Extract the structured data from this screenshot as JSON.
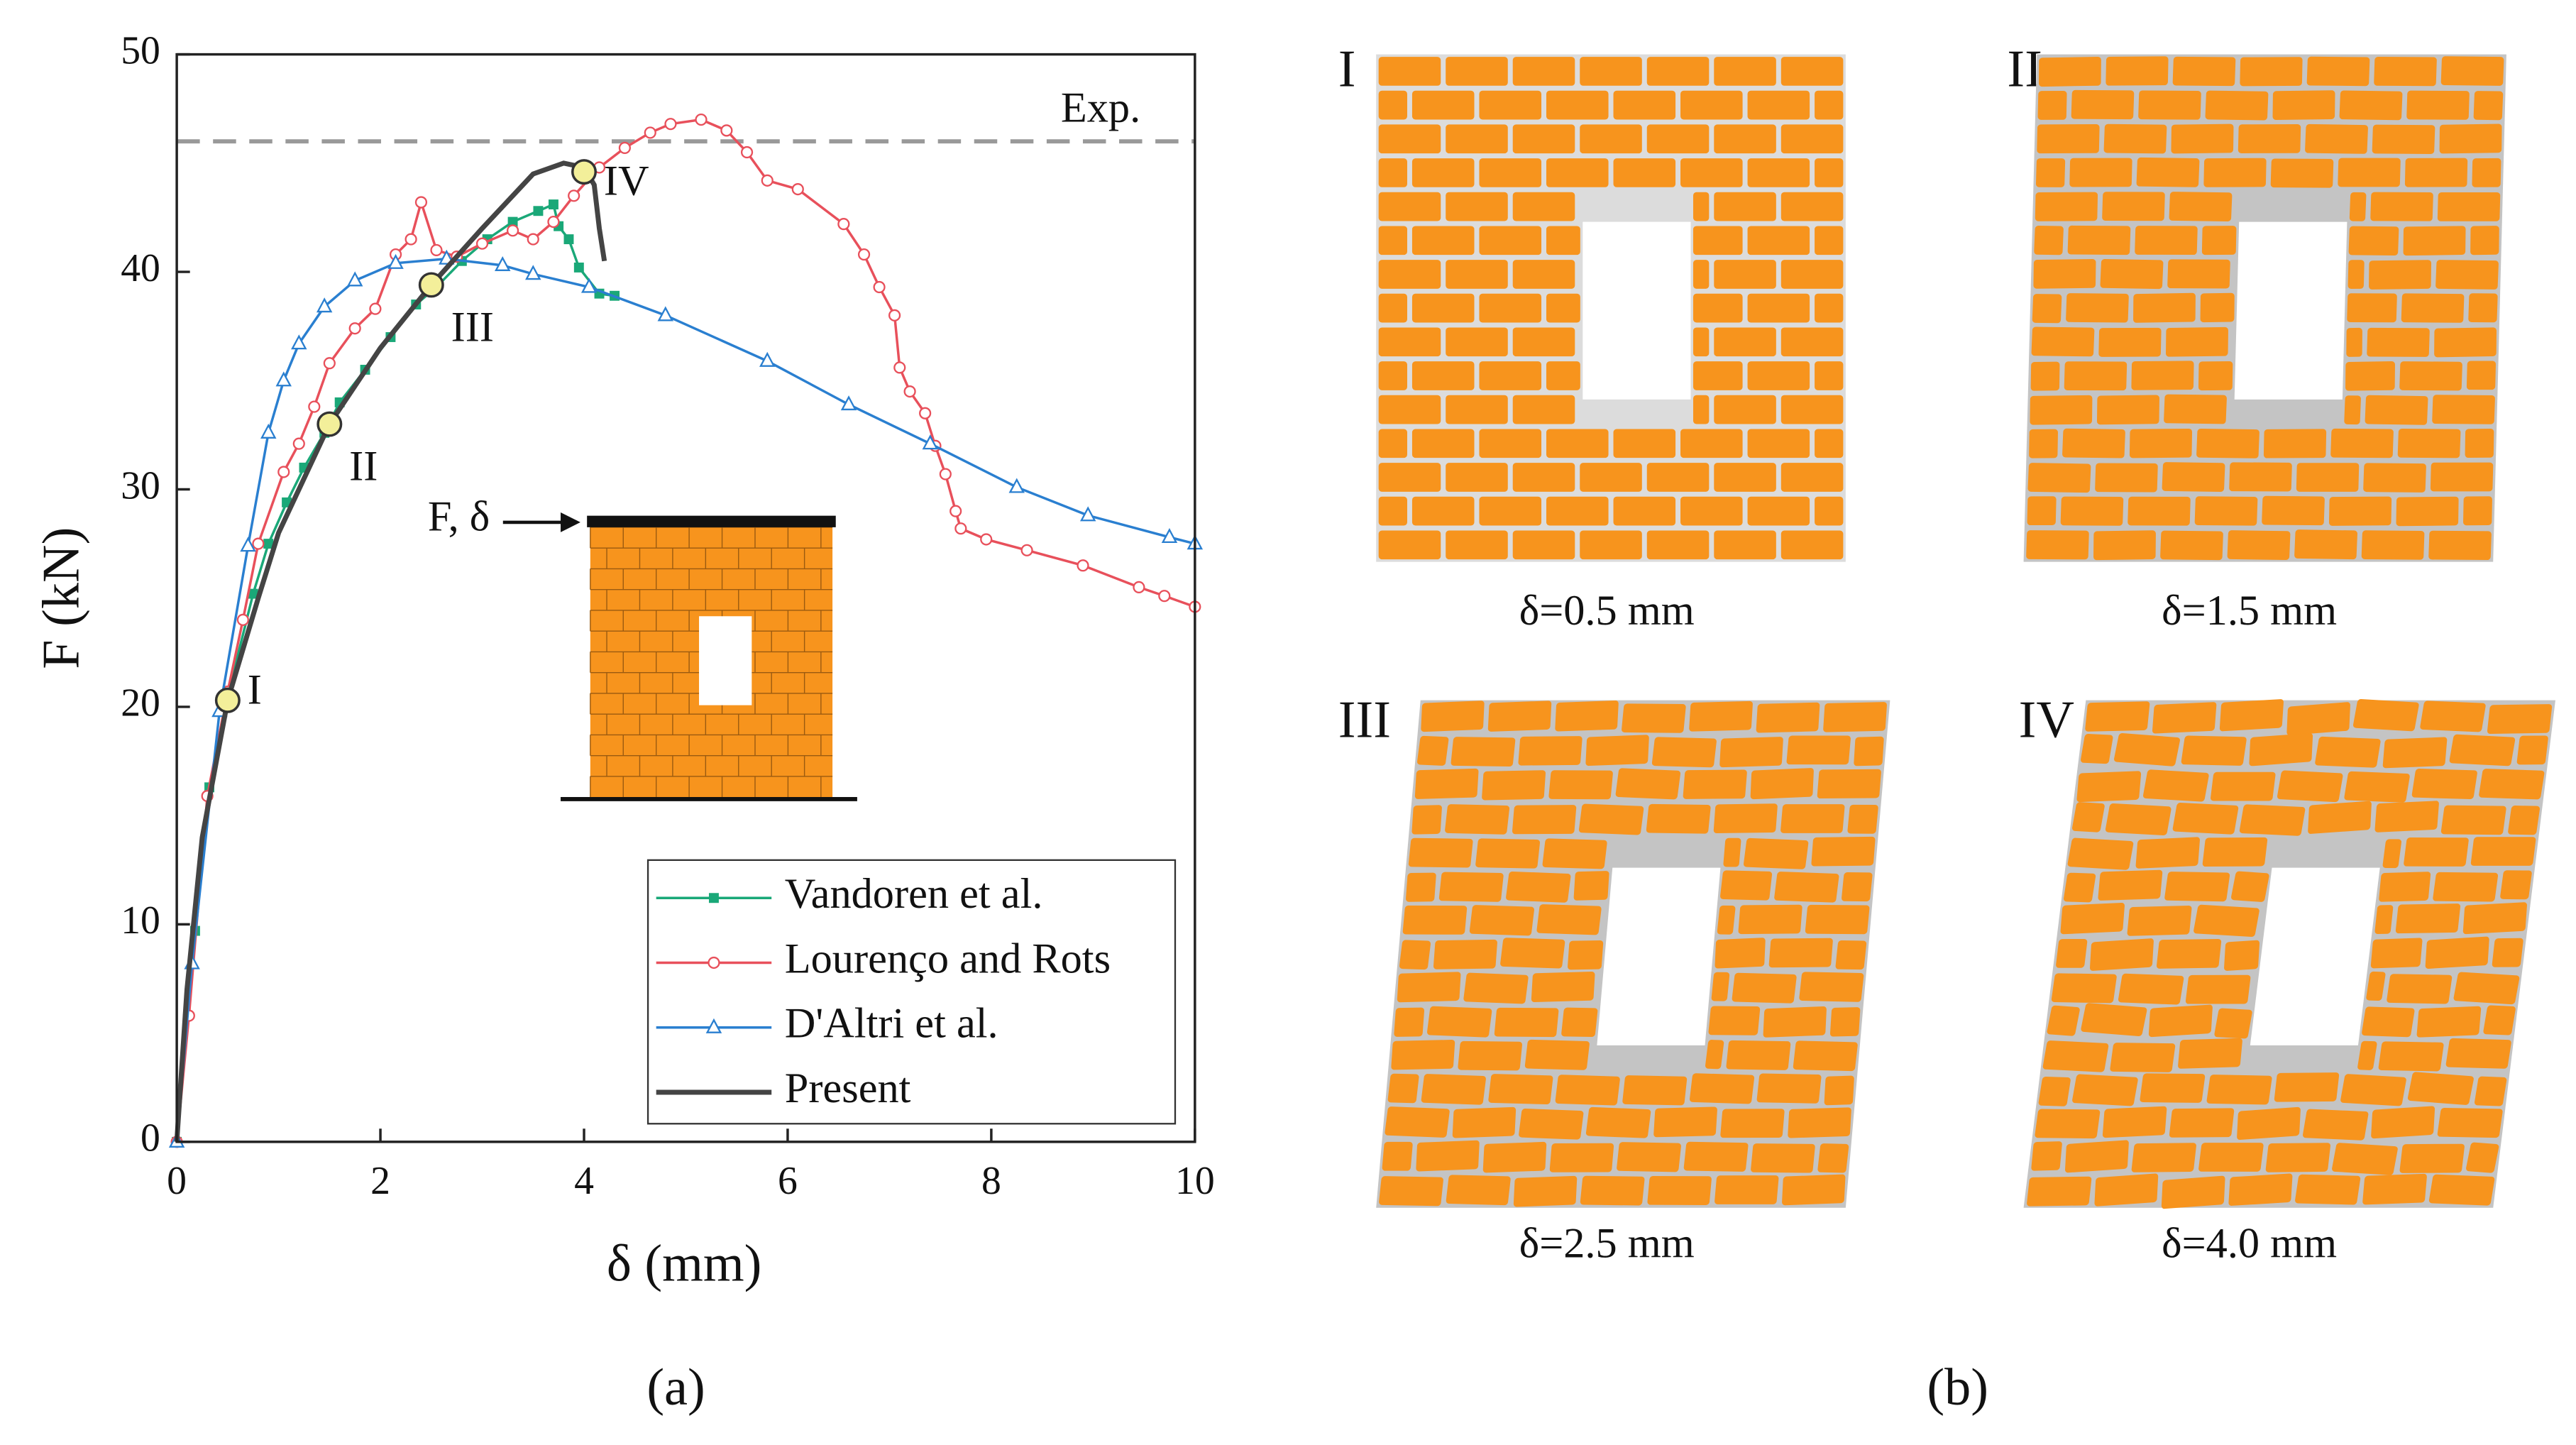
{
  "chart_data": {
    "type": "line",
    "xlabel": "δ (mm)",
    "ylabel": "F (kN)",
    "panel_label": "(a)",
    "xlim": [
      0,
      10
    ],
    "ylim": [
      0,
      50
    ],
    "xticks": [
      0,
      2,
      4,
      6,
      8,
      10
    ],
    "yticks": [
      0,
      10,
      20,
      30,
      40,
      50
    ],
    "legend": "lower right",
    "reference_line": {
      "label": "Exp.",
      "value": 46,
      "color": "#999999"
    },
    "inset_label": "F, δ",
    "annotations": [
      {
        "text": "I",
        "x": 0.5,
        "y": 20.3
      },
      {
        "text": "II",
        "x": 1.5,
        "y": 33
      },
      {
        "text": "III",
        "x": 2.5,
        "y": 39.4
      },
      {
        "text": "IV",
        "x": 4,
        "y": 44.6
      }
    ],
    "series": [
      {
        "name": "Vandoren et al.",
        "color": "#1aa878",
        "marker": "square",
        "x": [
          0,
          0.18,
          0.32,
          0.5,
          0.75,
          0.9,
          1.08,
          1.25,
          1.45,
          1.6,
          1.85,
          2.1,
          2.35,
          2.55,
          2.8,
          3.05,
          3.3,
          3.55,
          3.7,
          3.75,
          3.85,
          3.95,
          4.15,
          4.3
        ],
        "values": [
          0,
          9.7,
          16.3,
          20.5,
          25.2,
          27.5,
          29.4,
          31,
          32.6,
          34,
          35.5,
          37,
          38.5,
          39.3,
          40.5,
          41.5,
          42.3,
          42.8,
          43.1,
          42.1,
          41.5,
          40.2,
          39,
          38.9
        ]
      },
      {
        "name": "Lourenço and Rots",
        "color": "#e8505b",
        "marker": "circle",
        "x": [
          0,
          0.12,
          0.3,
          0.5,
          0.65,
          0.8,
          1.05,
          1.2,
          1.35,
          1.5,
          1.75,
          1.95,
          2.15,
          2.3,
          2.4,
          2.55,
          2.75,
          3.0,
          3.3,
          3.5,
          3.7,
          3.9,
          4.15,
          4.4,
          4.65,
          4.85,
          5.15,
          5.4,
          5.6,
          5.8,
          6.1,
          6.55,
          6.75,
          6.9,
          7.05,
          7.1,
          7.2,
          7.35,
          7.45,
          7.55,
          7.65,
          7.7,
          7.95,
          8.35,
          8.9,
          9.45,
          9.7,
          10
        ],
        "values": [
          0,
          5.8,
          15.9,
          20.7,
          24,
          27.5,
          30.8,
          32.1,
          33.8,
          35.8,
          37.4,
          38.3,
          40.8,
          41.5,
          43.2,
          41,
          40.7,
          41.3,
          41.9,
          41.5,
          42.3,
          43.5,
          44.8,
          45.7,
          46.4,
          46.8,
          47,
          46.5,
          45.5,
          44.2,
          43.8,
          42.2,
          40.8,
          39.3,
          38,
          35.6,
          34.5,
          33.5,
          32,
          30.7,
          29,
          28.2,
          27.7,
          27.2,
          26.5,
          25.5,
          25.1,
          24.6
        ]
      },
      {
        "name": "D'Altri et al.",
        "color": "#2a7fd0",
        "marker": "triangle",
        "x": [
          0,
          0.15,
          0.42,
          0.7,
          0.9,
          1.05,
          1.2,
          1.45,
          1.75,
          2.15,
          2.65,
          3.2,
          3.5,
          4.05,
          4.8,
          5.8,
          6.6,
          7.4,
          8.25,
          8.95,
          9.75,
          10
        ],
        "values": [
          0,
          8.2,
          19.8,
          27.4,
          32.6,
          35,
          36.7,
          38.4,
          39.6,
          40.4,
          40.6,
          40.3,
          39.9,
          39.3,
          38,
          35.9,
          33.9,
          32.1,
          30.1,
          28.8,
          27.8,
          27.5
        ]
      },
      {
        "name": "Present",
        "color": "#444444",
        "marker": "none",
        "x": [
          0,
          0.1,
          0.25,
          0.5,
          0.8,
          1.0,
          1.5,
          2.0,
          2.5,
          3.0,
          3.5,
          3.8,
          4.0,
          4.1,
          4.15,
          4.2
        ],
        "values": [
          0,
          7,
          14,
          20.3,
          25,
          28,
          33,
          36.5,
          39.4,
          42,
          44.5,
          45,
          44.8,
          44,
          42,
          40.5
        ]
      }
    ]
  },
  "panel_b": {
    "panel_label": "(b)",
    "snapshots": [
      {
        "label": "I",
        "caption": "δ=0.5 mm"
      },
      {
        "label": "II",
        "caption": "δ=1.5 mm"
      },
      {
        "label": "III",
        "caption": "δ=2.5 mm"
      },
      {
        "label": "IV",
        "caption": "δ=4.0 mm"
      }
    ]
  }
}
